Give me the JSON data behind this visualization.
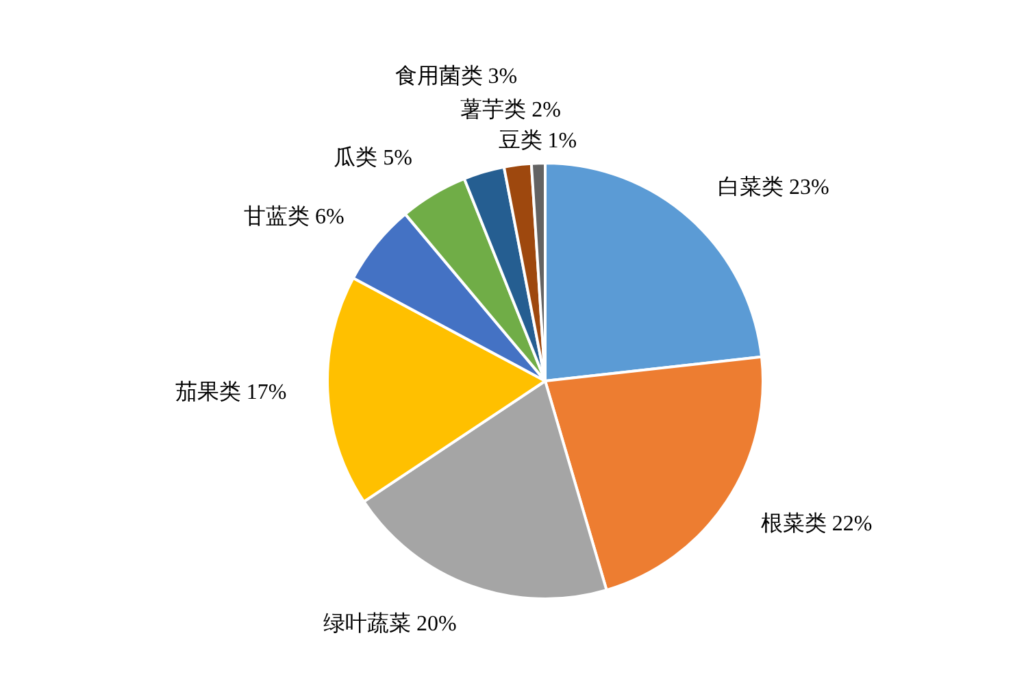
{
  "chart_data": {
    "type": "pie",
    "categories": [
      "白菜类",
      "根菜类",
      "绿叶蔬菜",
      "茄果类",
      "甘蓝类",
      "瓜类",
      "食用菌类",
      "薯芋类",
      "豆类"
    ],
    "values": [
      23,
      22,
      20,
      17,
      6,
      5,
      3,
      2,
      1
    ],
    "value_labels": [
      "23%",
      "22%",
      "20%",
      "17%",
      "6%",
      "5%",
      "3%",
      "2%",
      "1%"
    ],
    "colors": [
      "#5b9bd5",
      "#ed7d31",
      "#a5a5a5",
      "#ffc000",
      "#4472c4",
      "#70ad47",
      "#255e91",
      "#9e480e",
      "#636363"
    ],
    "legend": false
  }
}
